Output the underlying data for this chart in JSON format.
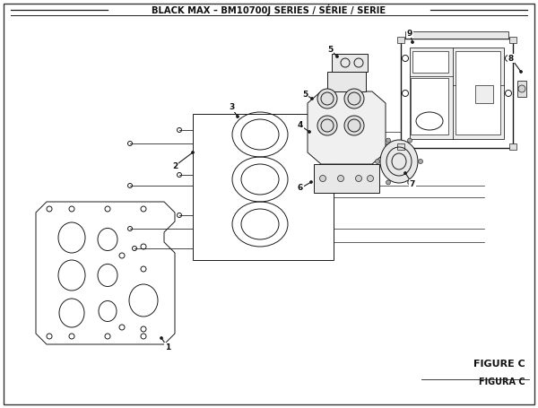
{
  "title": "BLACK MAX – BM10700J SERIES / SÉRIE / SERIE",
  "figure_label": "FIGURE C",
  "figura_label": "FIGURA C",
  "bg_color": "#ffffff",
  "line_color": "#1a1a1a",
  "text_color": "#111111"
}
